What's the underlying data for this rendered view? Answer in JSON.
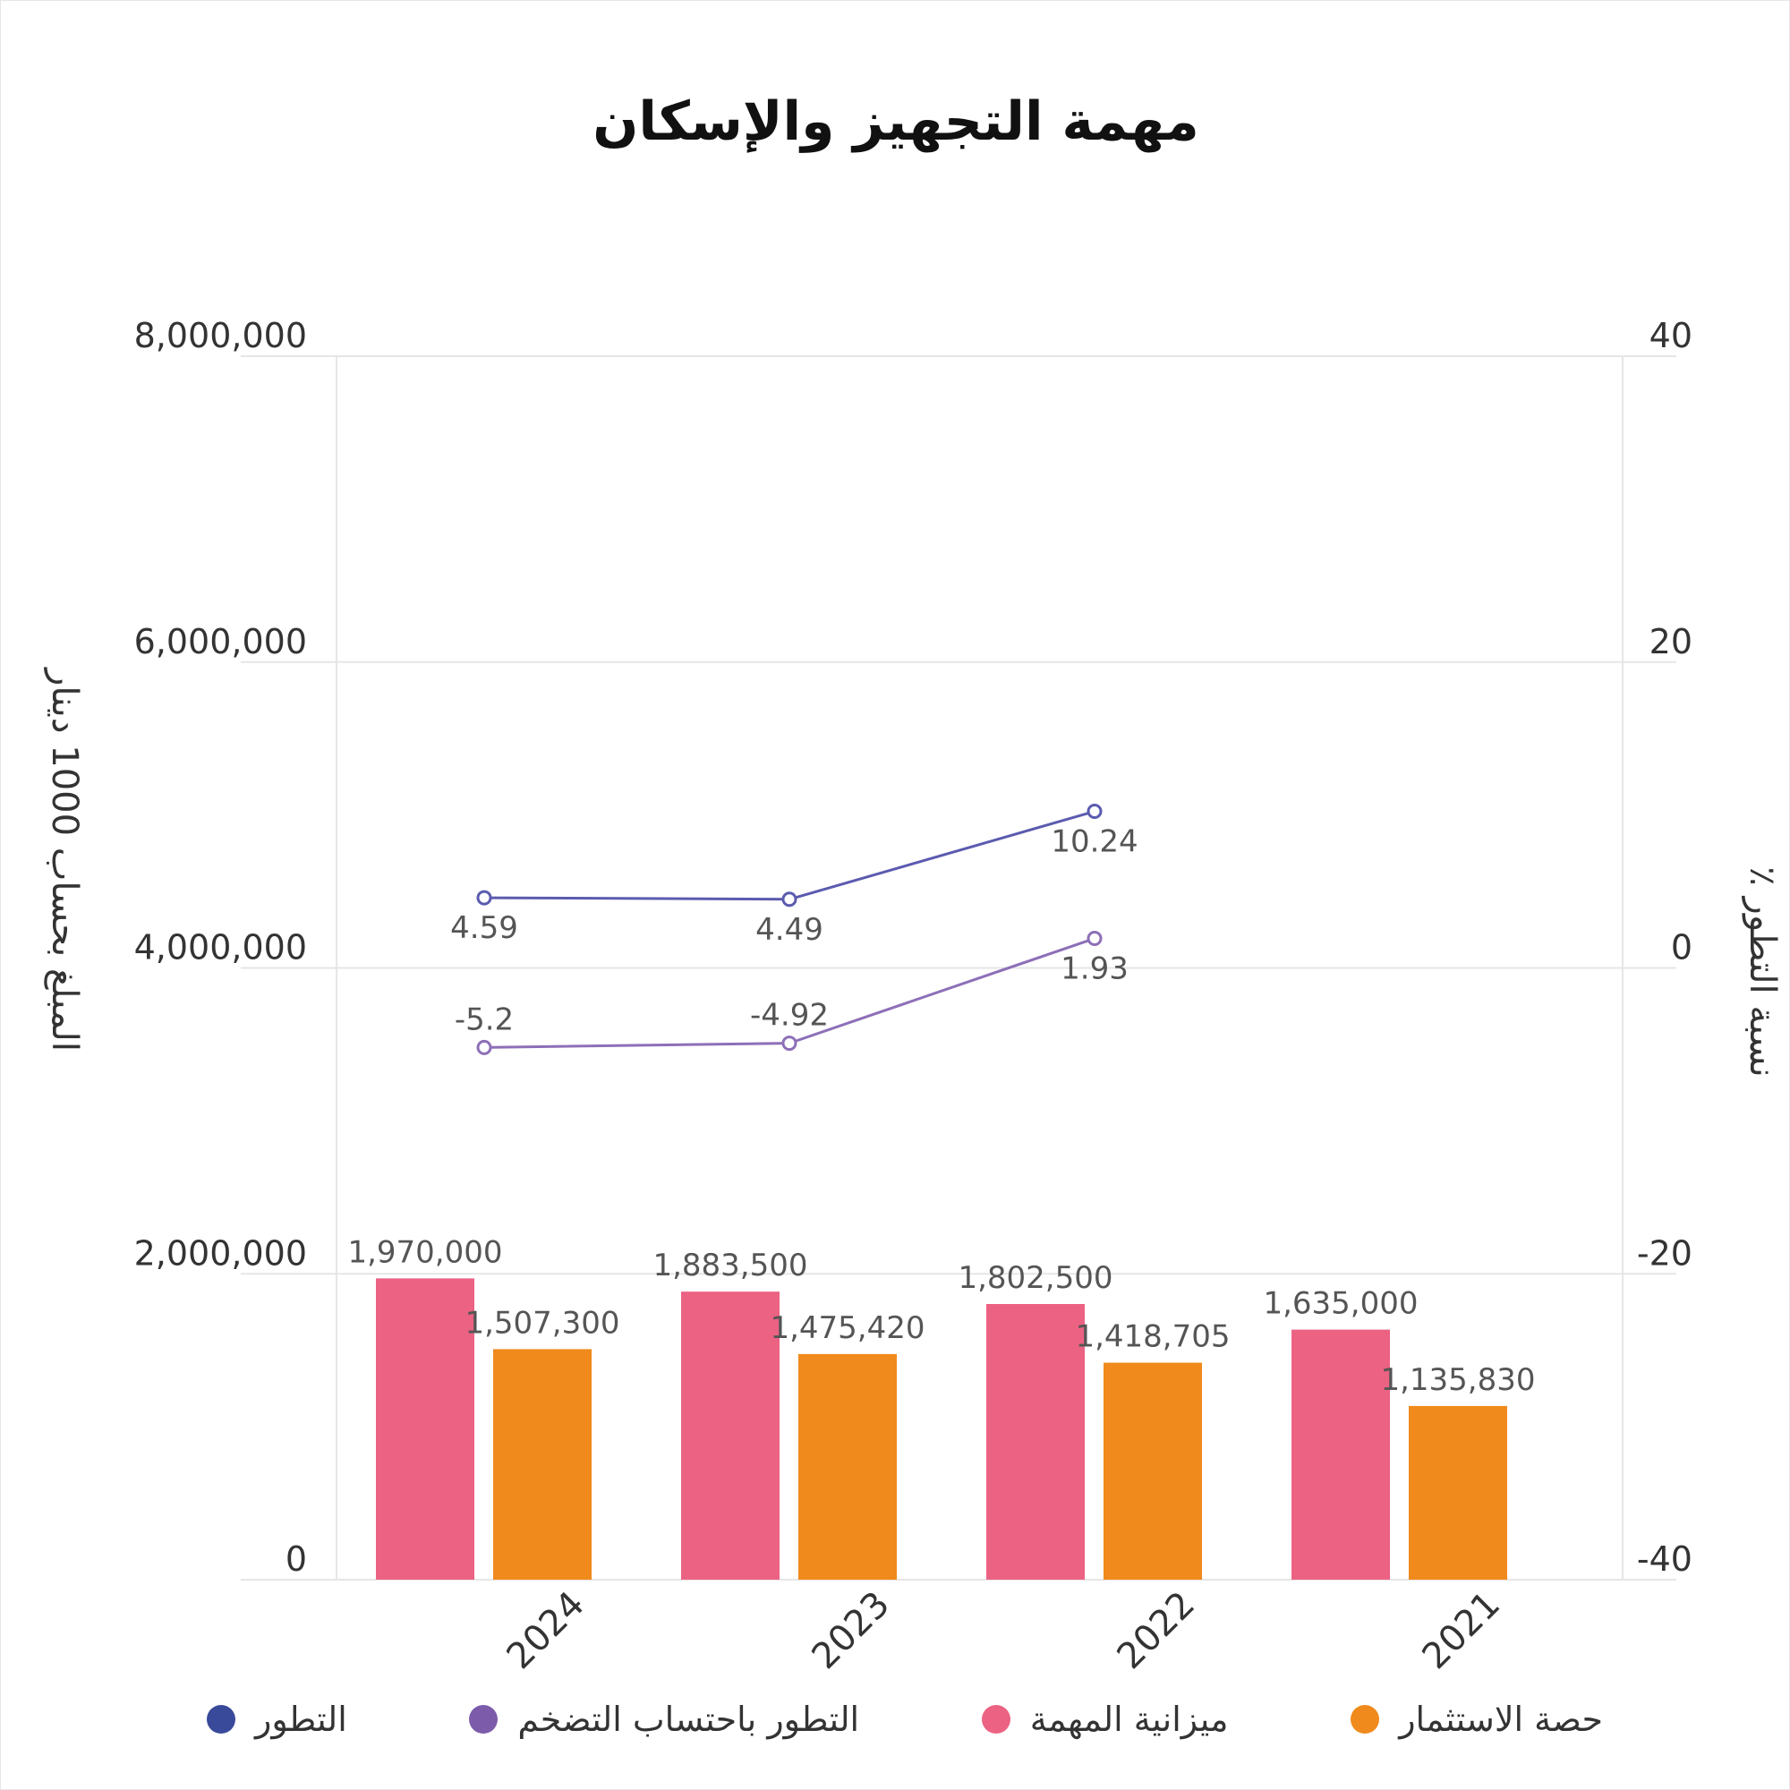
{
  "chart_data": {
    "type": "bar",
    "title": "مهمة التجهيز والإسكان",
    "categories": [
      "2024",
      "2023",
      "2022",
      "2021"
    ],
    "series": [
      {
        "name": "ميزانية المهمة",
        "axis": "left",
        "kind": "bar",
        "values": [
          1970000,
          1883500,
          1802500,
          1635000
        ],
        "labels": [
          "1,970,000",
          "1,883,500",
          "1,802,500",
          "1,635,000"
        ]
      },
      {
        "name": "حصة الاستثمار",
        "axis": "left",
        "kind": "bar",
        "values": [
          1507300,
          1475420,
          1418705,
          1135830
        ],
        "labels": [
          "1,507,300",
          "1,475,420",
          "1,418,705",
          "1,135,830"
        ]
      },
      {
        "name": "التطور",
        "axis": "right",
        "kind": "line",
        "values": [
          4.59,
          4.49,
          10.24,
          null
        ],
        "labels": [
          "4.59",
          "4.49",
          "10.24",
          ""
        ]
      },
      {
        "name": "التطور باحتساب التضخم",
        "axis": "right",
        "kind": "line",
        "values": [
          -5.2,
          -4.92,
          1.93,
          null
        ],
        "labels": [
          "-5.2",
          "-4.92",
          "1.93",
          ""
        ]
      }
    ],
    "ylabel": "المبلغ بحساب 1000 دينار",
    "ylim": [
      0,
      8000000
    ],
    "yticks": [
      0,
      2000000,
      4000000,
      6000000,
      8000000
    ],
    "ytick_labels": [
      "0",
      "2,000,000",
      "4,000,000",
      "6,000,000",
      "8,000,000"
    ],
    "y2label": "نسبة التطور ٪",
    "y2lim": [
      -40,
      40
    ],
    "y2ticks": [
      -40,
      -20,
      0,
      20,
      40
    ],
    "y2tick_labels": [
      "-40",
      "-20",
      "0",
      "20",
      "40"
    ],
    "grid": true,
    "legend_position": "bottom"
  },
  "colors": {
    "budget": "#ec6283",
    "investment": "#f08a1c",
    "evolution": "#5b5bb0",
    "evolution_inflation": "#8d6fb8",
    "legend_evolution": "#3a4a9a",
    "legend_evolution_inflation": "#7c5bab",
    "grid": "#e6e6e6",
    "text": "#333333",
    "data_label": "#555555"
  },
  "legend": {
    "items": [
      {
        "label": "التطور",
        "color": "#3a4a9a"
      },
      {
        "label": "التطور باحتساب التضخم",
        "color": "#7c5bab"
      },
      {
        "label": "ميزانية المهمة",
        "color": "#ec6283"
      },
      {
        "label": "حصة الاستثمار",
        "color": "#f08a1c"
      }
    ]
  }
}
